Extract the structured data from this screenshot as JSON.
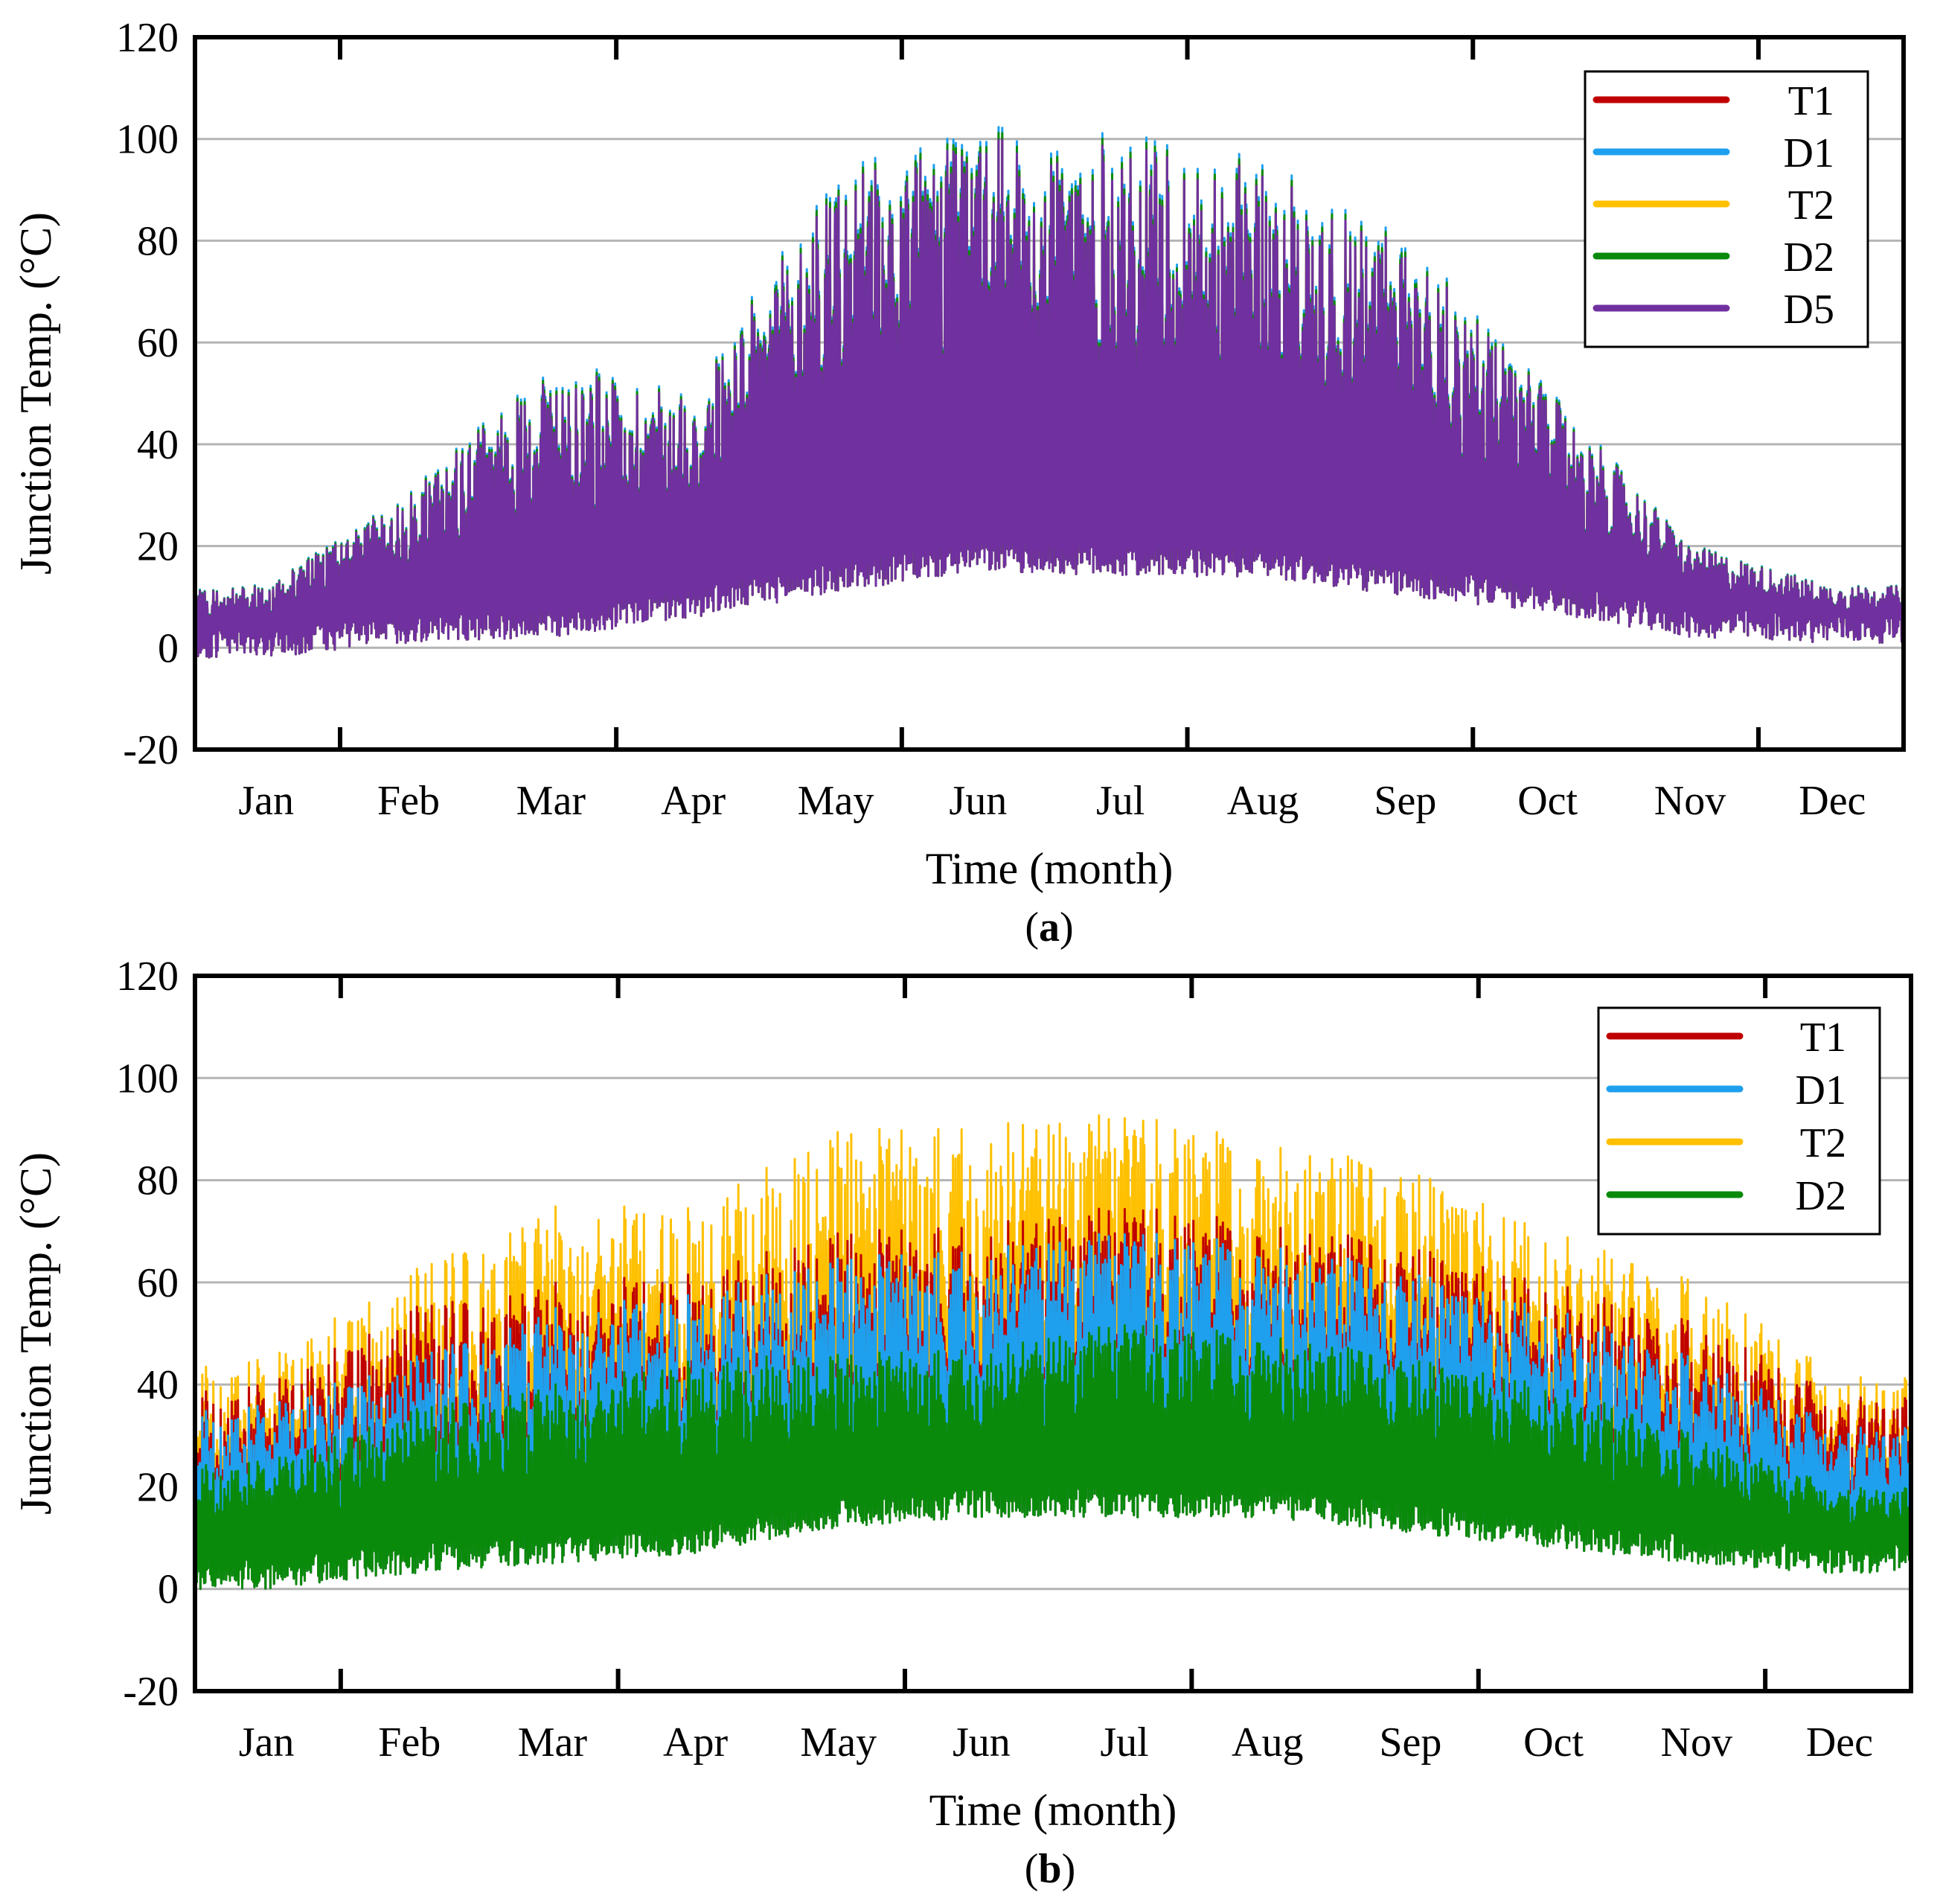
{
  "chart_data": [
    {
      "id": "a",
      "type": "line",
      "panel_label": "a",
      "xlabel": "Time (month)",
      "ylabel": "Junction Temp. (°C)",
      "ylim": [
        -20,
        120
      ],
      "yticks": [
        -20,
        0,
        20,
        40,
        60,
        80,
        100,
        120
      ],
      "months": [
        "Jan",
        "Feb",
        "Mar",
        "Apr",
        "May",
        "Jun",
        "Jul",
        "Aug",
        "Sep",
        "Oct",
        "Nov",
        "Dec"
      ],
      "grid": true,
      "legend_position": "top-right",
      "series": [
        {
          "name": "T1",
          "color": "#c00000",
          "offset": 0.3
        },
        {
          "name": "D1",
          "color": "#1ea0ee",
          "offset": 2.0
        },
        {
          "name": "T2",
          "color": "#ffc000",
          "offset": 0.8
        },
        {
          "name": "D2",
          "color": "#0a8a0a",
          "offset": 1.1
        },
        {
          "name": "D5",
          "color": "#7030a0",
          "offset": 0.0
        }
      ],
      "monthly_profile": {
        "base": [
          1,
          4,
          5,
          9,
          14,
          18,
          17,
          17,
          13,
          10,
          5,
          4
        ],
        "peak": [
          12,
          30,
          55,
          50,
          92,
          100,
          99,
          94,
          80,
          50,
          20,
          12
        ]
      }
    },
    {
      "id": "b",
      "type": "line",
      "panel_label": "b",
      "xlabel": "Time (month)",
      "ylabel": "Junction Temp. (°C)",
      "ylim": [
        -20,
        120
      ],
      "yticks": [
        -20,
        0,
        20,
        40,
        60,
        80,
        100,
        120
      ],
      "months": [
        "Jan",
        "Feb",
        "Mar",
        "Apr",
        "May",
        "Jun",
        "Jul",
        "Aug",
        "Sep",
        "Oct",
        "Nov",
        "Dec"
      ],
      "grid": true,
      "legend_position": "top-right",
      "series": [
        {
          "name": "T2",
          "color": "#ffc000"
        },
        {
          "name": "T1",
          "color": "#c00000"
        },
        {
          "name": "D1",
          "color": "#1ea0ee"
        },
        {
          "name": "D2",
          "color": "#0a8a0a"
        }
      ],
      "legend_order": [
        "T1",
        "D1",
        "T2",
        "D2"
      ],
      "monthly_profile": {
        "base": [
          3,
          6,
          8,
          10,
          15,
          17,
          17,
          17,
          14,
          11,
          8,
          6
        ],
        "peak_T2": [
          45,
          62,
          75,
          75,
          90,
          93,
          93,
          88,
          82,
          70,
          60,
          42
        ],
        "peak_T1": [
          40,
          55,
          60,
          62,
          70,
          73,
          75,
          72,
          67,
          60,
          52,
          38
        ],
        "peak_D1": [
          36,
          45,
          55,
          58,
          65,
          68,
          70,
          68,
          62,
          55,
          45,
          32
        ],
        "peak_D2": [
          25,
          35,
          40,
          45,
          46,
          48,
          52,
          50,
          45,
          40,
          30,
          20
        ]
      }
    }
  ]
}
